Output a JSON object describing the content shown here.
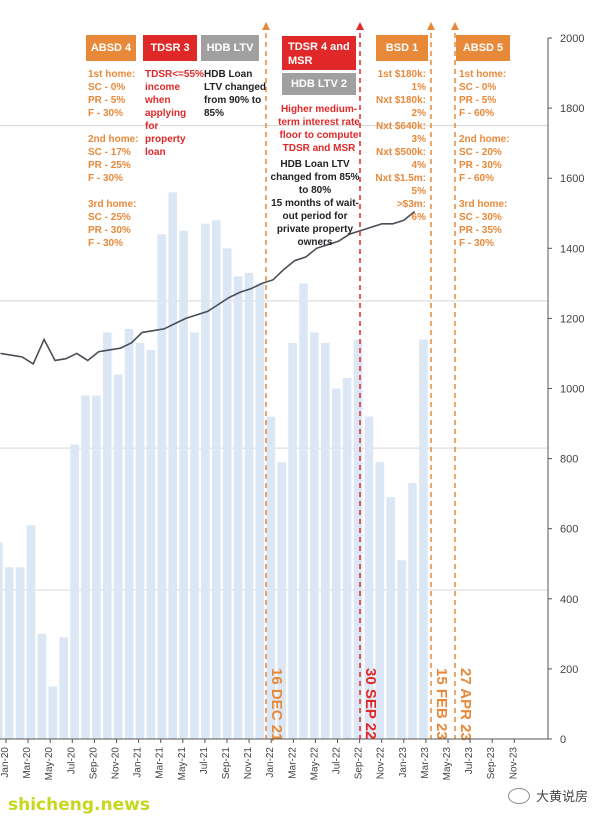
{
  "chart_data": {
    "type": "bar",
    "ylim": [
      0,
      2000
    ],
    "y_ticks": [
      0,
      200,
      400,
      600,
      800,
      1000,
      1200,
      1400,
      1600,
      1800,
      2000
    ],
    "x_tick_labels": [
      "Jan-20",
      "Mar-20",
      "May-20",
      "Jul-20",
      "Sep-20",
      "Nov-20",
      "Jan-21",
      "Mar-21",
      "May-21",
      "Jul-21",
      "Sep-21",
      "Nov-21",
      "Jan-22",
      "Mar-22",
      "May-22",
      "Jul-22",
      "Sep-22",
      "Nov-22",
      "Jan-23",
      "Mar-23",
      "May-23",
      "Jul-23",
      "Sep-23",
      "Nov-23"
    ],
    "bars": [
      560,
      490,
      490,
      610,
      300,
      150,
      290,
      840,
      980,
      980,
      1160,
      1040,
      1170,
      1130,
      1110,
      1440,
      1560,
      1450,
      1160,
      1470,
      1480,
      1400,
      1320,
      1330,
      1300,
      920,
      790,
      1130,
      1300,
      1160,
      1130,
      1000,
      1030,
      1140,
      920,
      790,
      690,
      510,
      730,
      1140
    ],
    "line": [
      1100,
      1095,
      1090,
      1070,
      1140,
      1080,
      1085,
      1100,
      1080,
      1105,
      1110,
      1115,
      1130,
      1160,
      1165,
      1170,
      1185,
      1200,
      1210,
      1220,
      1240,
      1260,
      1275,
      1285,
      1300,
      1310,
      1340,
      1365,
      1375,
      1400,
      1410,
      1420,
      1440,
      1450,
      1460,
      1470,
      1470,
      1480,
      1505
    ],
    "grid": true,
    "events": [
      {
        "date": "16 DEC 21",
        "color": "#e8893a"
      },
      {
        "date": "30 SEP 22",
        "color": "#e02828"
      },
      {
        "date": "15 FEB 23",
        "color": "#e8893a"
      },
      {
        "date": "27 APR 23",
        "color": "#e8893a"
      }
    ]
  },
  "colors": {
    "bar": "#dce7f5",
    "line": "#4a4f57",
    "orange": "#e8893a",
    "red": "#e02828",
    "grey": "#a0a0a0",
    "grid": "#d8d8d8"
  },
  "tags": {
    "absd4": "ABSD 4",
    "tdsr3": "TDSR 3",
    "hdbltv": "HDB LTV",
    "tdsr4": "TDSR 4 and\nMSR",
    "hdbltv2": "HDB LTV 2",
    "bsd1": "BSD 1",
    "absd5": "ABSD 5"
  },
  "notes": {
    "absd4": "1st home:\nSC - 0%\nPR - 5%\nF - 30%\n\n2nd home:\nSC - 17%\nPR - 25%\nF - 30%\n\n3rd home:\nSC - 25%\nPR - 30%\nF - 30%",
    "tdsr3": "TDSR<=55%\nincome\nwhen\napplying\nfor\nproperty\nloan",
    "hdbltv": "HDB Loan\nLTV changed\nfrom 90% to\n85%",
    "tdsr4_red": "Higher medium-\nterm interest rate\nfloor to compute\nTDSR and MSR",
    "tdsr4_black": "HDB Loan LTV\nchanged from 85%\nto 80%\n15 months of wait-\nout period for\nprivate property\nowners",
    "bsd1": "1st $180k:\n1%\nNxt $180k:\n2%\nNxt $640k:\n3%\nNxt $500k:\n4%\nNxt $1.5m:\n5%\n>$3m:\n6%",
    "absd5": "1st home:\nSC - 0%\nPR - 5%\nF - 60%\n\n2nd home:\nSC - 20%\nPR - 30%\nF - 60%\n\n3rd home:\nSC - 30%\nPR - 35%\nF - 30%"
  },
  "watermark": {
    "left": "shicheng.news",
    "right": "大黄说房"
  }
}
